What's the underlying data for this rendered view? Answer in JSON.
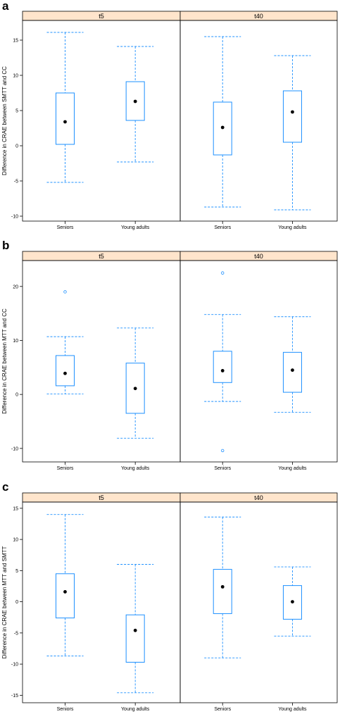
{
  "chart_data": [
    {
      "type": "box",
      "panel_label": "a",
      "ylabel": "Difference in CRAE between SMTT and CC",
      "categories": [
        "Seniors",
        "Young adults"
      ],
      "ylim": [
        -10.7,
        17.8
      ],
      "yticks": [
        -10,
        -5,
        0,
        5,
        10,
        15
      ],
      "ytick_labels": [
        "-10",
        "-5",
        "0",
        "5",
        "10",
        "15"
      ],
      "panels": [
        {
          "name": "t5",
          "boxes": [
            {
              "category": "Seniors",
              "whisker_low": -5.2,
              "q1": 0.2,
              "median": 3.4,
              "q3": 7.5,
              "whisker_high": 16.1,
              "outliers": []
            },
            {
              "category": "Young adults",
              "whisker_low": -2.3,
              "q1": 3.6,
              "median": 6.3,
              "q3": 9.1,
              "whisker_high": 14.1,
              "outliers": []
            }
          ]
        },
        {
          "name": "t40",
          "boxes": [
            {
              "category": "Seniors",
              "whisker_low": -8.7,
              "q1": -1.3,
              "median": 2.6,
              "q3": 6.2,
              "whisker_high": 15.5,
              "outliers": []
            },
            {
              "category": "Young adults",
              "whisker_low": -9.1,
              "q1": 0.5,
              "median": 4.8,
              "q3": 7.8,
              "whisker_high": 12.8,
              "outliers": []
            }
          ]
        }
      ]
    },
    {
      "type": "box",
      "panel_label": "b",
      "ylabel": "Difference in CRAE between MTT and CC",
      "categories": [
        "Seniors",
        "Young adults"
      ],
      "ylim": [
        -12.5,
        24.8
      ],
      "yticks": [
        -10,
        0,
        10,
        20
      ],
      "ytick_labels": [
        "-10",
        "0",
        "10",
        "20"
      ],
      "panels": [
        {
          "name": "t5",
          "boxes": [
            {
              "category": "Seniors",
              "whisker_low": 0.1,
              "q1": 1.6,
              "median": 3.9,
              "q3": 7.2,
              "whisker_high": 10.7,
              "outliers": [
                19
              ]
            },
            {
              "category": "Young adults",
              "whisker_low": -8.1,
              "q1": -3.5,
              "median": 1.1,
              "q3": 5.8,
              "whisker_high": 12.3,
              "outliers": []
            }
          ]
        },
        {
          "name": "t40",
          "boxes": [
            {
              "category": "Seniors",
              "whisker_low": -1.3,
              "q1": 2.2,
              "median": 4.4,
              "q3": 8.0,
              "whisker_high": 14.8,
              "outliers": [
                22.5,
                -10.4
              ]
            },
            {
              "category": "Young adults",
              "whisker_low": -3.3,
              "q1": 0.4,
              "median": 4.5,
              "q3": 7.8,
              "whisker_high": 14.4,
              "outliers": []
            }
          ]
        }
      ]
    },
    {
      "type": "box",
      "panel_label": "c",
      "ylabel": "Difference in CRAE between MTT and SMTT",
      "categories": [
        "Seniors",
        "Young adults"
      ],
      "ylim": [
        -16.2,
        16.0
      ],
      "yticks": [
        -15,
        -10,
        -5,
        0,
        5,
        10,
        15
      ],
      "ytick_labels": [
        "-15",
        "-10",
        "-5",
        "0",
        "5",
        "10",
        "15"
      ],
      "panels": [
        {
          "name": "t5",
          "boxes": [
            {
              "category": "Seniors",
              "whisker_low": -8.7,
              "q1": -2.6,
              "median": 1.6,
              "q3": 4.5,
              "whisker_high": 14.0,
              "outliers": []
            },
            {
              "category": "Young adults",
              "whisker_low": -14.6,
              "q1": -9.7,
              "median": -4.6,
              "q3": -2.1,
              "whisker_high": 6.0,
              "outliers": []
            }
          ]
        },
        {
          "name": "t40",
          "boxes": [
            {
              "category": "Seniors",
              "whisker_low": -9.0,
              "q1": -1.9,
              "median": 2.4,
              "q3": 5.2,
              "whisker_high": 13.6,
              "outliers": []
            },
            {
              "category": "Young adults",
              "whisker_low": -5.5,
              "q1": -2.8,
              "median": 0.0,
              "q3": 2.6,
              "whisker_high": 5.6,
              "outliers": []
            }
          ]
        }
      ]
    }
  ],
  "colors": {
    "strip_background": "#FFE5CC",
    "box_line": "#1E90FF",
    "median_dot": "#000000",
    "frame": "#000000",
    "background": "#ffffff"
  }
}
